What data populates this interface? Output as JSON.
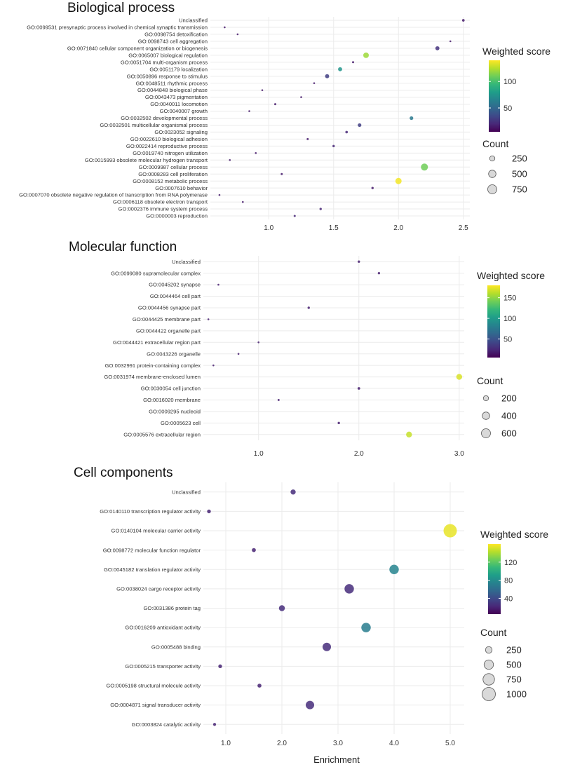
{
  "colors": {
    "viridis": [
      "#440154",
      "#482878",
      "#3e4989",
      "#31688e",
      "#26828e",
      "#1f9e89",
      "#35b779",
      "#6ece58",
      "#b5de2b",
      "#fde725"
    ],
    "grid": "#ebebeb",
    "text": "#222222"
  },
  "shared": {
    "xlabel": "Enrichment"
  },
  "chart_data": [
    {
      "type": "scatter",
      "title": "Biological process",
      "xlabel": "",
      "xlim": [
        0.55,
        2.55
      ],
      "xticks": [
        1.0,
        1.5,
        2.0,
        2.5
      ],
      "xtick_labels": [
        "1.0",
        "1.5",
        "2.0",
        "2.5"
      ],
      "legend": {
        "color_title": "Weighted score",
        "color_range": [
          5,
          140
        ],
        "color_ticks": [
          50,
          100
        ],
        "color_tick_labels": [
          "50",
          "100"
        ],
        "size_title": "Count",
        "size_entries": [
          250,
          500,
          750
        ],
        "size_labels": [
          "250",
          "500",
          "750"
        ],
        "size_max": 750
      },
      "points": [
        {
          "label": "Unclassified",
          "x": 2.5,
          "size": 60,
          "score": 15
        },
        {
          "label": "GO:0099531 presynaptic process involved in chemical synaptic transmission",
          "x": 0.66,
          "size": 30,
          "score": 15
        },
        {
          "label": "GO:0098754 detoxification",
          "x": 0.76,
          "size": 20,
          "score": 15
        },
        {
          "label": "GO:0098743 cell aggregation",
          "x": 2.4,
          "size": 20,
          "score": 15
        },
        {
          "label": "GO:0071840 cellular component organization or biogenesis",
          "x": 2.3,
          "size": 150,
          "score": 25
        },
        {
          "label": "GO:0065007 biological regulation",
          "x": 1.75,
          "size": 280,
          "score": 120
        },
        {
          "label": "GO:0051704 multi-organism process",
          "x": 1.65,
          "size": 40,
          "score": 15
        },
        {
          "label": "GO:0051179 localization",
          "x": 1.55,
          "size": 150,
          "score": 75
        },
        {
          "label": "GO:0050896 response to stimulus",
          "x": 1.45,
          "size": 150,
          "score": 30
        },
        {
          "label": "GO:0048511 rhythmic process",
          "x": 1.35,
          "size": 25,
          "score": 15
        },
        {
          "label": "GO:0044848 biological phase",
          "x": 0.95,
          "size": 20,
          "score": 15
        },
        {
          "label": "GO:0043473 pigmentation",
          "x": 1.25,
          "size": 25,
          "score": 15
        },
        {
          "label": "GO:0040011 locomotion",
          "x": 1.05,
          "size": 40,
          "score": 15
        },
        {
          "label": "GO:0040007 growth",
          "x": 0.85,
          "size": 30,
          "score": 15
        },
        {
          "label": "GO:0032502 developmental process",
          "x": 2.1,
          "size": 120,
          "score": 60
        },
        {
          "label": "GO:0032501 multicellular organismal process",
          "x": 1.7,
          "size": 120,
          "score": 30
        },
        {
          "label": "GO:0023052 signaling",
          "x": 1.6,
          "size": 60,
          "score": 20
        },
        {
          "label": "GO:0022610 biological adhesion",
          "x": 1.3,
          "size": 40,
          "score": 15
        },
        {
          "label": "GO:0022414 reproductive process",
          "x": 1.5,
          "size": 50,
          "score": 20
        },
        {
          "label": "GO:0019740 nitrogen utilization",
          "x": 0.9,
          "size": 20,
          "score": 15
        },
        {
          "label": "GO:0015993 obsolete molecular hydrogen transport",
          "x": 0.7,
          "size": 20,
          "score": 15
        },
        {
          "label": "GO:0009987 cellular process",
          "x": 2.2,
          "size": 450,
          "score": 110
        },
        {
          "label": "GO:0008283 cell proliferation",
          "x": 1.1,
          "size": 40,
          "score": 15
        },
        {
          "label": "GO:0008152 metabolic process",
          "x": 2.0,
          "size": 350,
          "score": 138
        },
        {
          "label": "GO:0007610 behavior",
          "x": 1.8,
          "size": 50,
          "score": 15
        },
        {
          "label": "GO:0007070 obsolete negative regulation of transcription from RNA polymerase",
          "x": 0.62,
          "size": 20,
          "score": 15
        },
        {
          "label": "GO:0006118 obsolete electron transport",
          "x": 0.8,
          "size": 20,
          "score": 15
        },
        {
          "label": "GO:0002376 immune system process",
          "x": 1.4,
          "size": 50,
          "score": 20
        },
        {
          "label": "GO:0000003 reproduction",
          "x": 1.2,
          "size": 40,
          "score": 20
        }
      ]
    },
    {
      "type": "scatter",
      "title": "Molecular function",
      "xlabel": "",
      "xlim": [
        0.45,
        3.05
      ],
      "xticks": [
        1.0,
        2.0,
        3.0
      ],
      "xtick_labels": [
        "1.0",
        "2.0",
        "3.0"
      ],
      "legend": {
        "color_title": "Weighted score",
        "color_range": [
          5,
          180
        ],
        "color_ticks": [
          50,
          100,
          150
        ],
        "color_tick_labels": [
          "50",
          "100",
          "150"
        ],
        "size_title": "Count",
        "size_entries": [
          200,
          400,
          600
        ],
        "size_labels": [
          "200",
          "400",
          "600"
        ],
        "size_max": 600
      },
      "points": [
        {
          "label": "Unclassified",
          "x": 2.0,
          "size": 40,
          "score": 20
        },
        {
          "label": "GO:0099080 supramolecular complex",
          "x": 2.2,
          "size": 40,
          "score": 20
        },
        {
          "label": "GO:0045202 synapse",
          "x": 0.6,
          "size": 15,
          "score": 20
        },
        {
          "label": "GO:0044464 cell part",
          "x": 0,
          "size": 0,
          "score": 0
        },
        {
          "label": "GO:0044456 synapse part",
          "x": 1.5,
          "size": 40,
          "score": 20
        },
        {
          "label": "GO:0044425 membrane part",
          "x": 0.5,
          "size": 15,
          "score": 20
        },
        {
          "label": "GO:0044422 organelle part",
          "x": 0,
          "size": 0,
          "score": 0
        },
        {
          "label": "GO:0044421 extracellular region part",
          "x": 1.0,
          "size": 15,
          "score": 20
        },
        {
          "label": "GO:0043226 organelle",
          "x": 0.8,
          "size": 10,
          "score": 20
        },
        {
          "label": "GO:0032991 protein-containing complex",
          "x": 0.55,
          "size": 20,
          "score": 20
        },
        {
          "label": "GO:0031974 membrane-enclosed lumen",
          "x": 3.0,
          "size": 250,
          "score": 170
        },
        {
          "label": "GO:0030054 cell junction",
          "x": 2.0,
          "size": 50,
          "score": 20
        },
        {
          "label": "GO:0016020 membrane",
          "x": 1.2,
          "size": 30,
          "score": 20
        },
        {
          "label": "GO:0009295 nucleoid",
          "x": 0,
          "size": 0,
          "score": 0
        },
        {
          "label": "GO:0005623 cell",
          "x": 1.8,
          "size": 40,
          "score": 20
        },
        {
          "label": "GO:0005576 extracellular region",
          "x": 2.5,
          "size": 250,
          "score": 165
        }
      ]
    },
    {
      "type": "scatter",
      "title": "Cell components",
      "xlabel": "Enrichment",
      "xlim": [
        0.6,
        5.25
      ],
      "xticks": [
        1.0,
        2.0,
        3.0,
        4.0,
        5.0
      ],
      "xtick_labels": [
        "1.0",
        "2.0",
        "3.0",
        "4.0",
        "5.0"
      ],
      "legend": {
        "color_title": "Weighted score",
        "color_range": [
          5,
          160
        ],
        "color_ticks": [
          40,
          80,
          120
        ],
        "color_tick_labels": [
          "40",
          "80",
          "120"
        ],
        "size_title": "Count",
        "size_entries": [
          250,
          500,
          750,
          1000
        ],
        "size_labels": [
          "250",
          "500",
          "750",
          "1000"
        ],
        "size_max": 1000
      },
      "points": [
        {
          "label": "Unclassified",
          "x": 2.2,
          "size": 150,
          "score": 25
        },
        {
          "label": "GO:0140110 transcription regulator activity",
          "x": 0.7,
          "size": 80,
          "score": 20
        },
        {
          "label": "GO:0140104 molecular carrier activity",
          "x": 5.0,
          "size": 1000,
          "score": 155
        },
        {
          "label": "GO:0098772 molecular function regulator",
          "x": 1.5,
          "size": 90,
          "score": 20
        },
        {
          "label": "GO:0045182 translation regulator activity",
          "x": 4.0,
          "size": 500,
          "score": 75
        },
        {
          "label": "GO:0038024 cargo receptor activity",
          "x": 3.2,
          "size": 500,
          "score": 25
        },
        {
          "label": "GO:0031386 protein tag",
          "x": 2.0,
          "size": 200,
          "score": 25
        },
        {
          "label": "GO:0016209 antioxidant activity",
          "x": 3.5,
          "size": 500,
          "score": 70
        },
        {
          "label": "GO:0005488 binding",
          "x": 2.8,
          "size": 400,
          "score": 25
        },
        {
          "label": "GO:0005215 transporter activity",
          "x": 0.9,
          "size": 80,
          "score": 20
        },
        {
          "label": "GO:0005198 structural molecule activity",
          "x": 1.6,
          "size": 90,
          "score": 20
        },
        {
          "label": "GO:0004871 signal transducer activity",
          "x": 2.5,
          "size": 400,
          "score": 25
        },
        {
          "label": "GO:0003824 catalytic activity",
          "x": 0.8,
          "size": 50,
          "score": 20
        }
      ]
    }
  ]
}
